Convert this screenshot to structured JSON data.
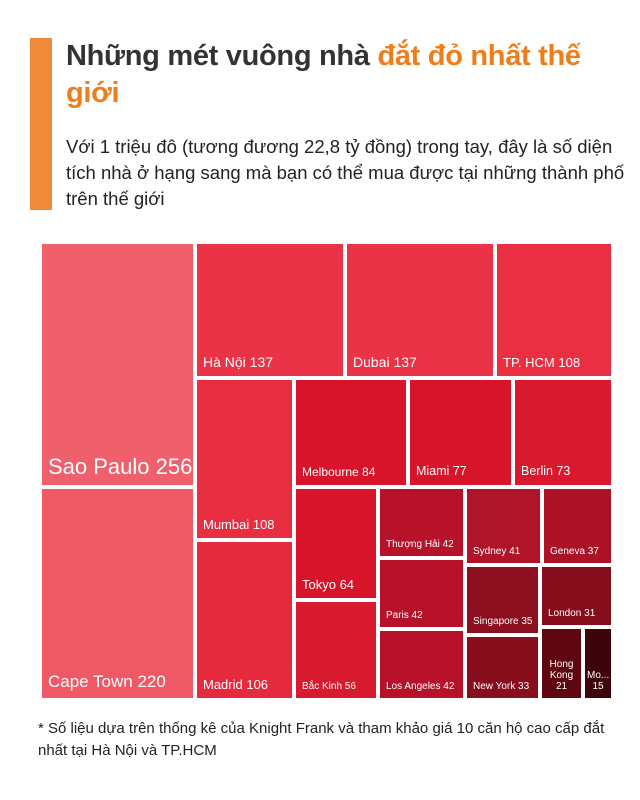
{
  "header": {
    "title_part1": "Những mét vuông nhà ",
    "title_highlight": "đắt đỏ nhất thế giới",
    "subtitle": "Với 1 triệu đô (tương đương 22,8 tỷ đồng) trong tay, đây là số diện tích nhà ở  hạng sang mà bạn có thể mua được tại những thành phố trên thế giới"
  },
  "colors": {
    "accent_bar": "#ef8a3a",
    "highlight": "#ef7d1a"
  },
  "chart_data": {
    "type": "treemap",
    "title": "",
    "items": [
      {
        "name": "Sao Paulo",
        "value": 256,
        "label": "Sao Paulo 256",
        "color": "#f0606c"
      },
      {
        "name": "Cape Town",
        "value": 220,
        "label": "Cape Town 220",
        "color": "#ef5865"
      },
      {
        "name": "Hà Nội",
        "value": 137,
        "label": "Hà Nội 137",
        "color": "#ea3346"
      },
      {
        "name": "Dubai",
        "value": 137,
        "label": "Dubai 137",
        "color": "#ea3346"
      },
      {
        "name": "TP. HCM",
        "value": 108,
        "label": "TP. HCM 108",
        "color": "#ea2f43"
      },
      {
        "name": "Mumbai",
        "value": 108,
        "label": "Mumbai 108",
        "color": "#e82f42"
      },
      {
        "name": "Madrid",
        "value": 106,
        "label": "Madrid 106",
        "color": "#e52a3e"
      },
      {
        "name": "Melbourne",
        "value": 84,
        "label": "Melbourne 84",
        "color": "#d8142a"
      },
      {
        "name": "Miami",
        "value": 77,
        "label": "Miami 77",
        "color": "#d8142a"
      },
      {
        "name": "Berlin",
        "value": 73,
        "label": "Berlin 73",
        "color": "#d91a2e"
      },
      {
        "name": "Tokyo",
        "value": 64,
        "label": "Tokyo 64",
        "color": "#d8142a"
      },
      {
        "name": "Bắc Kinh",
        "value": 56,
        "label": "Bắc Kinh 56",
        "color": "#d81a2e"
      },
      {
        "name": "Thượng Hải",
        "value": 42,
        "label": "Thượng Hải 42",
        "color": "#b8122a"
      },
      {
        "name": "Paris",
        "value": 42,
        "label": "Paris 42",
        "color": "#b8122a"
      },
      {
        "name": "Los Angeles",
        "value": 42,
        "label": "Los Angeles 42",
        "color": "#b8122a"
      },
      {
        "name": "Sydney",
        "value": 41,
        "label": "Sydney 41",
        "color": "#b01428"
      },
      {
        "name": "Geneva",
        "value": 37,
        "label": "Geneva 37",
        "color": "#ac1226"
      },
      {
        "name": "Singapore",
        "value": 35,
        "label": "Singapore 35",
        "color": "#8b0f1f"
      },
      {
        "name": "New York",
        "value": 33,
        "label": "New York 33",
        "color": "#880e1e"
      },
      {
        "name": "London",
        "value": 31,
        "label": "London 31",
        "color": "#850d1c"
      },
      {
        "name": "Hong Kong",
        "value": 21,
        "label": "Hong Kong 21",
        "color": "#5e0711"
      },
      {
        "name": "Mo...",
        "value": 15,
        "label": "Mo... 15",
        "color": "#3e040b"
      }
    ]
  },
  "footnote": "* Số liệu dựa trên thống kê của Knight Frank và tham khảo giá 10 căn hộ cao cấp đắt nhất tại Hà Nội và TP.HCM"
}
